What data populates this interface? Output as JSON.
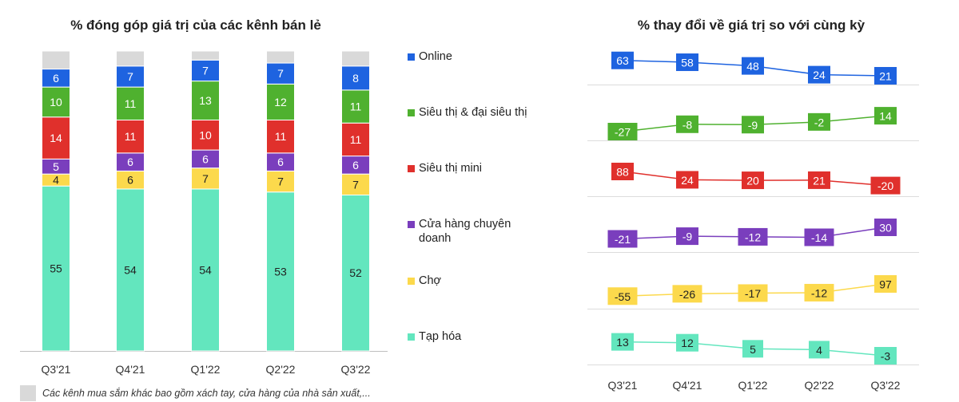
{
  "footnote": "Các kênh mua sắm khác bao gồm xách tay, cửa hàng của nhà sản xuất,...",
  "chart_data": [
    {
      "type": "bar",
      "stacked": true,
      "title": "% đóng góp giá trị của các kênh bán lẻ",
      "categories": [
        "Q3'21",
        "Q4'21",
        "Q1'22",
        "Q2'22",
        "Q3'22"
      ],
      "series": [
        {
          "name": "Tạp hóa",
          "color": "#63e6be",
          "values": [
            55,
            54,
            54,
            53,
            52
          ]
        },
        {
          "name": "Chợ",
          "color": "#fcd94c",
          "values": [
            4,
            6,
            7,
            7,
            7
          ]
        },
        {
          "name": "Cửa hàng chuyên doanh",
          "color": "#7a3ebd",
          "values": [
            5,
            6,
            6,
            6,
            6
          ]
        },
        {
          "name": "Siêu thị mini",
          "color": "#e0302c",
          "values": [
            14,
            11,
            10,
            11,
            11
          ]
        },
        {
          "name": "Siêu thị & đại siêu thị",
          "color": "#4fb12f",
          "values": [
            10,
            11,
            13,
            12,
            11
          ]
        },
        {
          "name": "Online",
          "color": "#1e63e0",
          "values": [
            6,
            7,
            7,
            7,
            8
          ]
        }
      ],
      "remainder_color": "#d9d9d9",
      "ylim": [
        0,
        100
      ]
    },
    {
      "type": "line",
      "title": "% thay đổi về giá trị so với cùng kỳ",
      "categories": [
        "Q3'21",
        "Q4'21",
        "Q1'22",
        "Q2'22",
        "Q3'22"
      ],
      "series": [
        {
          "name": "Online",
          "color": "#1e63e0",
          "values": [
            63,
            58,
            48,
            24,
            21
          ]
        },
        {
          "name": "Siêu thị & đại siêu thị",
          "color": "#4fb12f",
          "values": [
            -27,
            -8,
            -9,
            -2,
            14
          ]
        },
        {
          "name": "Siêu thị mini",
          "color": "#e0302c",
          "values": [
            88,
            24,
            20,
            21,
            -20
          ]
        },
        {
          "name": "Cửa hàng chuyên doanh",
          "color": "#7a3ebd",
          "values": [
            -21,
            -9,
            -12,
            -14,
            30
          ]
        },
        {
          "name": "Chợ",
          "color": "#fcd94c",
          "values": [
            -55,
            -26,
            -17,
            -12,
            97
          ]
        },
        {
          "name": "Tạp hóa",
          "color": "#63e6be",
          "values": [
            13,
            12,
            5,
            4,
            -3
          ]
        }
      ]
    }
  ],
  "legend": [
    {
      "name": "Online",
      "color": "#1e63e0"
    },
    {
      "name": "Siêu thị & đại siêu thị",
      "color": "#4fb12f"
    },
    {
      "name": "Siêu thị mini",
      "color": "#e0302c"
    },
    {
      "name": "Cửa hàng chuyên doanh",
      "color": "#7a3ebd"
    },
    {
      "name": "Chợ",
      "color": "#fcd94c"
    },
    {
      "name": "Tạp hóa",
      "color": "#63e6be"
    }
  ]
}
